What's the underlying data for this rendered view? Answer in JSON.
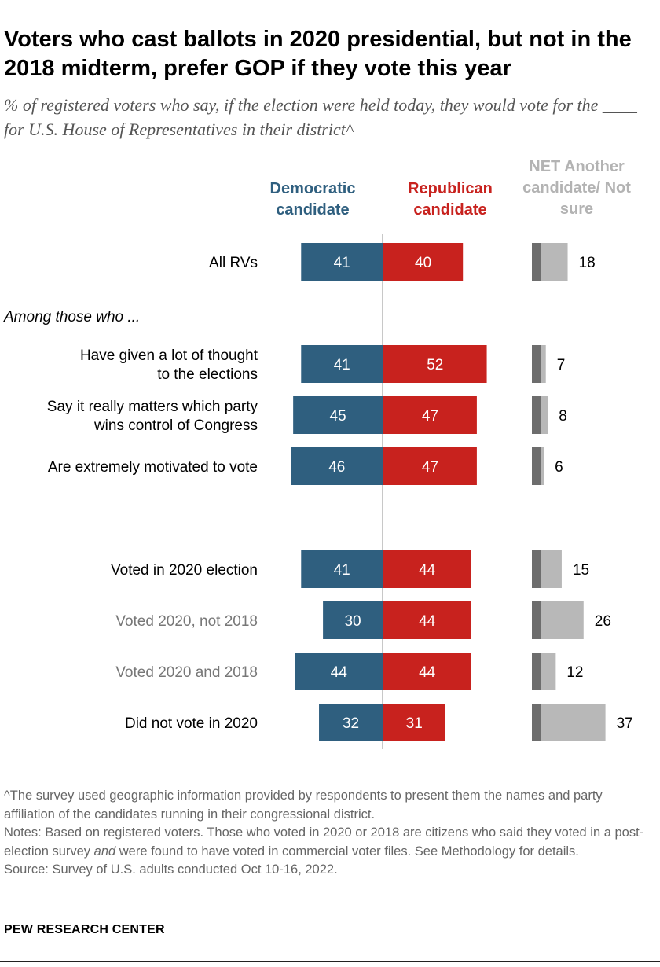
{
  "title": "Voters who cast ballots in 2020 presidential, but not in the 2018 midterm, prefer GOP if they vote this year",
  "subtitle": "% of registered voters who say, if the election were held today, they would vote for the ____ for U.S. House of Representatives in their district^",
  "columns": {
    "dem": "Democratic candidate",
    "rep": "Republican candidate",
    "other": "NET Another candidate/ Not sure"
  },
  "group_label": "Among those who ...",
  "colors": {
    "dem": "#2f5f7f",
    "rep": "#c8221e",
    "other_dark": "#6d6d6d",
    "other_light": "#b8b8b8",
    "muted_label": "#777777"
  },
  "chart_data": {
    "type": "bar",
    "title": "Voters who cast ballots in 2020 presidential, but not in the 2018 midterm, prefer GOP if they vote this year",
    "categories": [
      "All RVs",
      "Have given a lot of thought to the elections",
      "Say it really matters which party wins control of Congress",
      "Are extremely motivated to vote",
      "Voted in 2020 election",
      "Voted 2020, not 2018",
      "Voted 2020 and 2018",
      "Did not vote in 2020"
    ],
    "series": [
      {
        "name": "Democratic candidate",
        "values": [
          41,
          41,
          45,
          46,
          41,
          30,
          44,
          32
        ]
      },
      {
        "name": "Republican candidate",
        "values": [
          40,
          52,
          47,
          47,
          44,
          44,
          44,
          31
        ]
      },
      {
        "name": "NET Another candidate/ Not sure",
        "values": [
          18,
          7,
          8,
          6,
          15,
          26,
          12,
          37
        ]
      }
    ],
    "rows": [
      {
        "label_lines": [
          "All RVs"
        ],
        "dem": 41,
        "rep": 40,
        "other": 18,
        "muted": false
      },
      {
        "label_lines": [
          "Have given a lot of thought",
          "to the elections"
        ],
        "dem": 41,
        "rep": 52,
        "other": 7,
        "muted": false
      },
      {
        "label_lines": [
          "Say it really matters which party",
          "wins control of Congress"
        ],
        "dem": 45,
        "rep": 47,
        "other": 8,
        "muted": false
      },
      {
        "label_lines": [
          "Are extremely motivated to vote"
        ],
        "dem": 46,
        "rep": 47,
        "other": 6,
        "muted": false
      },
      {
        "label_lines": [
          "Voted in 2020 election"
        ],
        "dem": 41,
        "rep": 44,
        "other": 15,
        "muted": false
      },
      {
        "label_lines": [
          "Voted 2020, not 2018"
        ],
        "dem": 30,
        "rep": 44,
        "other": 26,
        "muted": true
      },
      {
        "label_lines": [
          "Voted 2020 and 2018"
        ],
        "dem": 44,
        "rep": 44,
        "other": 12,
        "muted": true
      },
      {
        "label_lines": [
          "Did not vote in 2020"
        ],
        "dem": 32,
        "rep": 31,
        "other": 37,
        "muted": false
      }
    ]
  },
  "footer": {
    "note_caret": "^The survey used geographic information provided by respondents to present them the names and party affiliation of the candidates running in their congressional district.",
    "notes_before": "Notes: Based on registered voters. Those who voted in 2020 or 2018 are citizens who said they voted in a post-election survey ",
    "notes_em": "and",
    "notes_after": " were found to have voted in commercial voter files. See Methodology for details.",
    "source": "Source: Survey of U.S. adults conducted Oct 10-16, 2022."
  },
  "brand": "PEW RESEARCH CENTER"
}
